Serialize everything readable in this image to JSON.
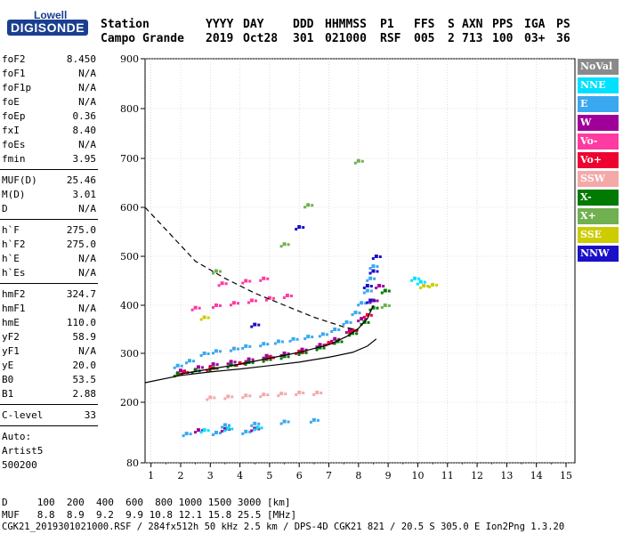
{
  "logo": {
    "top": "Lowell",
    "main": "DIGISONDE"
  },
  "header": {
    "row1": [
      "Station",
      "YYYY",
      "DAY",
      "DDD",
      "HHMMSS",
      "P1",
      "FFS",
      "S",
      "AXN",
      "PPS",
      "IGA",
      "PS"
    ],
    "row2": [
      "Campo Grande",
      "2019",
      "Oct28",
      "301",
      "021000",
      "RSF",
      "005",
      "2",
      "713",
      "100",
      "03+",
      "36"
    ]
  },
  "params": [
    {
      "name": "foF2",
      "value": "8.450"
    },
    {
      "name": "foF1",
      "value": "N/A"
    },
    {
      "name": "foF1p",
      "value": "N/A"
    },
    {
      "name": "foE",
      "value": "N/A"
    },
    {
      "name": "foEp",
      "value": "0.36"
    },
    {
      "name": "fxI",
      "value": "8.40"
    },
    {
      "name": "foEs",
      "value": "N/A"
    },
    {
      "name": "fmin",
      "value": "3.95"
    },
    {
      "name": "MUF(D)",
      "value": "25.46"
    },
    {
      "name": "M(D)",
      "value": "3.01"
    },
    {
      "name": "D",
      "value": "N/A"
    },
    {
      "name": "h`F",
      "value": "275.0"
    },
    {
      "name": "h`F2",
      "value": "275.0"
    },
    {
      "name": "h`E",
      "value": "N/A"
    },
    {
      "name": "h`Es",
      "value": "N/A"
    },
    {
      "name": "hmF2",
      "value": "324.7"
    },
    {
      "name": "hmF1",
      "value": "N/A"
    },
    {
      "name": "hmE",
      "value": "110.0"
    },
    {
      "name": "yF2",
      "value": "58.9"
    },
    {
      "name": "yF1",
      "value": "N/A"
    },
    {
      "name": "yE",
      "value": "20.0"
    },
    {
      "name": "B0",
      "value": "53.5"
    },
    {
      "name": "B1",
      "value": "2.88"
    },
    {
      "name": "C-level",
      "value": "33"
    }
  ],
  "notes": {
    "auto": "Auto:",
    "artist": "Artist5",
    "version": "500200"
  },
  "legend": [
    {
      "label": "NoVal",
      "color": "#8a8a8a"
    },
    {
      "label": "NNE",
      "color": "#00e0ff"
    },
    {
      "label": "E",
      "color": "#3aa8f0"
    },
    {
      "label": "W",
      "color": "#a0009a"
    },
    {
      "label": "Vo-",
      "color": "#ff3aa0"
    },
    {
      "label": "Vo+",
      "color": "#ee0030"
    },
    {
      "label": "SSW",
      "color": "#f5a8a8"
    },
    {
      "label": "X-",
      "color": "#007a00"
    },
    {
      "label": "X+",
      "color": "#70b050"
    },
    {
      "label": "SSE",
      "color": "#cccc00"
    },
    {
      "label": "NNW",
      "color": "#1a10c8"
    }
  ],
  "chart_data": {
    "type": "scatter",
    "xlim": [
      0.8,
      15.3
    ],
    "ylim": [
      80,
      900
    ],
    "xticks": [
      "1",
      "2",
      "3",
      "4",
      "5",
      "6",
      "7",
      "8",
      "9",
      "10",
      "11",
      "12",
      "13",
      "14",
      "15"
    ],
    "yticks": [
      "80",
      "200",
      "300",
      "400",
      "500",
      "600",
      "700",
      "800",
      "900"
    ],
    "grid": true,
    "series": [
      {
        "color": "#3aa8f0",
        "points": [
          [
            1.9,
            275
          ],
          [
            2.3,
            285
          ],
          [
            2.8,
            300
          ],
          [
            3.2,
            305
          ],
          [
            3.8,
            310
          ],
          [
            4.2,
            315
          ],
          [
            4.8,
            320
          ],
          [
            5.3,
            325
          ],
          [
            5.8,
            330
          ],
          [
            6.3,
            335
          ],
          [
            6.8,
            340
          ],
          [
            7.2,
            350
          ],
          [
            7.6,
            365
          ],
          [
            7.9,
            385
          ],
          [
            8.1,
            405
          ],
          [
            8.3,
            430
          ],
          [
            8.4,
            455
          ],
          [
            8.5,
            480
          ],
          [
            3.5,
            155
          ],
          [
            4.5,
            158
          ],
          [
            5.5,
            162
          ],
          [
            6.5,
            165
          ],
          [
            2.2,
            138
          ],
          [
            3.2,
            140
          ],
          [
            4.2,
            142
          ]
        ]
      },
      {
        "color": "#a0009a",
        "points": [
          [
            2,
            265
          ],
          [
            2.6,
            272
          ],
          [
            3.1,
            278
          ],
          [
            3.7,
            283
          ],
          [
            4.3,
            288
          ],
          [
            4.9,
            295
          ],
          [
            5.5,
            300
          ],
          [
            6.1,
            308
          ],
          [
            6.7,
            318
          ],
          [
            7.2,
            330
          ],
          [
            7.7,
            348
          ],
          [
            8.1,
            372
          ],
          [
            8.5,
            410
          ],
          [
            8.7,
            440
          ],
          [
            2.6,
            145
          ],
          [
            3.5,
            147
          ],
          [
            4.5,
            148
          ]
        ]
      },
      {
        "color": "#007a00",
        "points": [
          [
            1.9,
            258
          ],
          [
            2.5,
            265
          ],
          [
            3.1,
            270
          ],
          [
            3.7,
            276
          ],
          [
            4.3,
            282
          ],
          [
            4.9,
            288
          ],
          [
            5.5,
            294
          ],
          [
            6.1,
            302
          ],
          [
            6.7,
            312
          ],
          [
            7.3,
            325
          ],
          [
            7.8,
            342
          ],
          [
            8.2,
            365
          ],
          [
            8.5,
            395
          ],
          [
            8.9,
            430
          ]
        ]
      },
      {
        "color": "#ee0030",
        "points": [
          [
            2.1,
            262
          ],
          [
            3,
            270
          ],
          [
            4,
            280
          ],
          [
            5,
            292
          ],
          [
            6,
            304
          ],
          [
            7,
            322
          ],
          [
            7.8,
            348
          ],
          [
            8.3,
            380
          ]
        ]
      },
      {
        "color": "#ff3aa0",
        "points": [
          [
            2.5,
            395
          ],
          [
            3.2,
            400
          ],
          [
            3.8,
            405
          ],
          [
            4.4,
            410
          ],
          [
            5,
            415
          ],
          [
            5.6,
            420
          ],
          [
            3.4,
            445
          ],
          [
            4.2,
            450
          ],
          [
            4.8,
            455
          ]
        ]
      },
      {
        "color": "#f5a8a8",
        "points": [
          [
            3,
            210
          ],
          [
            3.6,
            212
          ],
          [
            4.2,
            214
          ],
          [
            4.8,
            216
          ],
          [
            5.4,
            218
          ],
          [
            6,
            220
          ],
          [
            6.6,
            220
          ]
        ]
      },
      {
        "color": "#1a10c8",
        "points": [
          [
            8.3,
            440
          ],
          [
            8.5,
            470
          ],
          [
            8.6,
            500
          ],
          [
            8.4,
            410
          ],
          [
            4.5,
            360
          ],
          [
            6,
            560
          ]
        ]
      },
      {
        "color": "#00e0ff",
        "points": [
          [
            9.9,
            455
          ],
          [
            10.1,
            448
          ],
          [
            2.8,
            145
          ],
          [
            3.6,
            148
          ],
          [
            4.6,
            150
          ]
        ]
      },
      {
        "color": "#cccc00",
        "points": [
          [
            10.2,
            440
          ],
          [
            10.5,
            442
          ],
          [
            2.8,
            375
          ]
        ]
      },
      {
        "color": "#70b050",
        "points": [
          [
            8,
            695
          ],
          [
            6.3,
            605
          ],
          [
            5.5,
            525
          ],
          [
            3.2,
            470
          ],
          [
            8.9,
            400
          ]
        ]
      }
    ],
    "lines": [
      {
        "style": "dashed",
        "points": [
          [
            0.8,
            600
          ],
          [
            1.5,
            555
          ],
          [
            2.5,
            490
          ],
          [
            3.5,
            455
          ],
          [
            4.5,
            425
          ],
          [
            5.5,
            400
          ],
          [
            6.5,
            375
          ],
          [
            7.5,
            355
          ],
          [
            8,
            348
          ]
        ]
      },
      {
        "style": "solid",
        "points": [
          [
            0.8,
            240
          ],
          [
            2,
            255
          ],
          [
            3,
            262
          ],
          [
            4,
            268
          ],
          [
            5,
            275
          ],
          [
            6,
            282
          ],
          [
            7,
            292
          ],
          [
            7.8,
            302
          ],
          [
            8.3,
            315
          ],
          [
            8.6,
            330
          ]
        ]
      },
      {
        "style": "solid",
        "points": [
          [
            2,
            258
          ],
          [
            3,
            268
          ],
          [
            4,
            278
          ],
          [
            5,
            290
          ],
          [
            6,
            302
          ],
          [
            7,
            318
          ],
          [
            7.6,
            335
          ],
          [
            8,
            352
          ],
          [
            8.3,
            372
          ],
          [
            8.5,
            400
          ]
        ]
      }
    ]
  },
  "footer": {
    "line1": "D     100  200  400  600  800 1000 1500 3000 [km]",
    "line2": "MUF   8.8  8.9  9.2  9.9 10.8 12.1 15.8 25.5 [MHz]",
    "line3": "CGK21_2019301021000.RSF / 284fx512h 50 kHz 2.5 km / DPS-4D CGK21 821 / 20.5 S 305.0 E Ion2Png 1.3.20"
  }
}
